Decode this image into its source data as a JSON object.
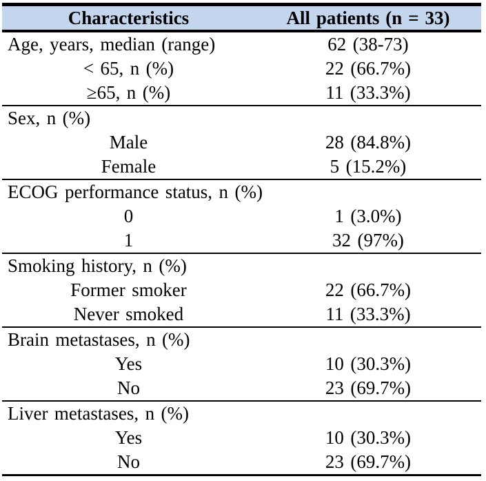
{
  "title": "Patient baseline characteristics table",
  "table": {
    "header_bg": "#c4d5ee",
    "border_color": "#000000",
    "text_color": "#000000",
    "columns": [
      "Characteristics",
      "All patients (n = 33)"
    ],
    "sections": [
      {
        "rows": [
          {
            "label": "Age, years, median (range)",
            "value": "62 (38-73)",
            "indent": false
          },
          {
            "label": "< 65, n (%)",
            "value": "22 (66.7%)",
            "indent": true
          },
          {
            "label": "≥65, n (%)",
            "value": "11 (33.3%)",
            "indent": true
          }
        ]
      },
      {
        "rows": [
          {
            "label": "Sex, n (%)",
            "value": "",
            "indent": false
          },
          {
            "label": "Male",
            "value": "28 (84.8%)",
            "indent": true
          },
          {
            "label": "Female",
            "value": "5 (15.2%)",
            "indent": true
          }
        ]
      },
      {
        "rows": [
          {
            "label": "ECOG performance status, n (%)",
            "value": "",
            "indent": false
          },
          {
            "label": "0",
            "value": "1 (3.0%)",
            "indent": true
          },
          {
            "label": "1",
            "value": "32 (97%)",
            "indent": true
          }
        ]
      },
      {
        "rows": [
          {
            "label": "Smoking history, n (%)",
            "value": "",
            "indent": false
          },
          {
            "label": "Former smoker",
            "value": "22 (66.7%)",
            "indent": true
          },
          {
            "label": "Never smoked",
            "value": "11 (33.3%)",
            "indent": true
          }
        ]
      },
      {
        "rows": [
          {
            "label": "Brain metastases, n (%)",
            "value": "",
            "indent": false
          },
          {
            "label": "Yes",
            "value": "10 (30.3%)",
            "indent": true
          },
          {
            "label": "No",
            "value": "23 (69.7%)",
            "indent": true
          }
        ]
      },
      {
        "rows": [
          {
            "label": "Liver metastases, n (%)",
            "value": "",
            "indent": false
          },
          {
            "label": "Yes",
            "value": "10 (30.3%)",
            "indent": true
          },
          {
            "label": "No",
            "value": "23 (69.7%)",
            "indent": true
          }
        ]
      }
    ]
  }
}
